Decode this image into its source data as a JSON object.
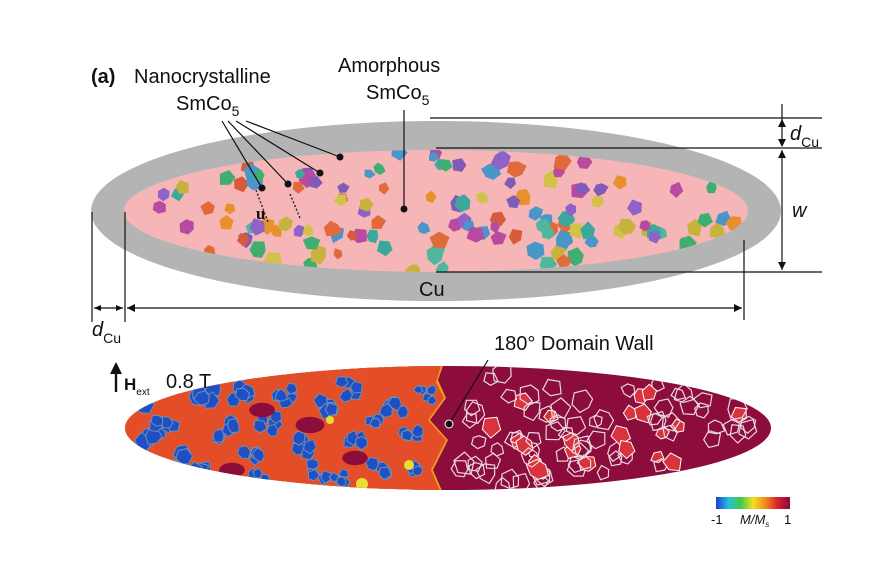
{
  "panel_label": "(a)",
  "labels": {
    "nanocrystalline_line1": "Nanocrystalline",
    "nanocrystalline_line2_main": "SmCo",
    "nanocrystalline_line2_sub": "5",
    "amorphous_line1": "Amorphous",
    "amorphous_line2_main": "SmCo",
    "amorphous_line2_sub": "5",
    "u_axis": "u",
    "d_cu_main": "d",
    "d_cu_sub": "Cu",
    "w": "w",
    "cu": "Cu",
    "domain_wall": "180° Domain Wall"
  },
  "field": {
    "symbol": "H",
    "symbol_sub": "ext",
    "value": "0.8 T"
  },
  "colorbar": {
    "min_label": "-1",
    "axis_label": "M/M",
    "axis_label_sub": "s",
    "max_label": "1",
    "colors": [
      "#1f3fd0",
      "#26c0e0",
      "#3fc84a",
      "#f0e020",
      "#f08a1e",
      "#d82030",
      "#8a0a3a"
    ]
  },
  "colors": {
    "shell": "#b4b4b4",
    "core": "#f6b6b8",
    "magnetization_up": "#8c0c3c",
    "magnetization_down": "#1f4fc4"
  }
}
